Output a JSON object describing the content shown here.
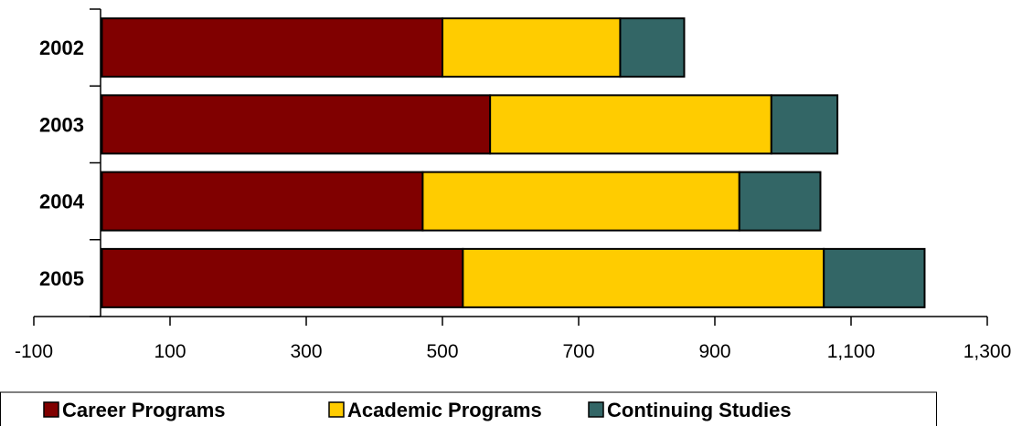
{
  "chart_data": {
    "type": "bar",
    "orientation": "horizontal",
    "stacked": true,
    "categories": [
      "2002",
      "2003",
      "2004",
      "2005"
    ],
    "series": [
      {
        "name": "Career Programs",
        "color": "#800000",
        "values": [
          500,
          570,
          471,
          530
        ]
      },
      {
        "name": "Academic Programs",
        "color": "#FFCC00",
        "values": [
          261,
          413,
          465,
          530
        ]
      },
      {
        "name": "Continuing Studies",
        "color": "#336666",
        "values": [
          94,
          97,
          119,
          148
        ]
      }
    ],
    "xlim": [
      -100,
      1300
    ],
    "x_ticks": [
      -100,
      100,
      300,
      500,
      700,
      900,
      1100,
      1300
    ],
    "x_tick_labels": [
      "-100",
      "100",
      "300",
      "500",
      "700",
      "900",
      "1,100",
      "1,300"
    ],
    "title": "",
    "xlabel": "",
    "ylabel": "",
    "grid": false,
    "legend_position": "bottom"
  }
}
